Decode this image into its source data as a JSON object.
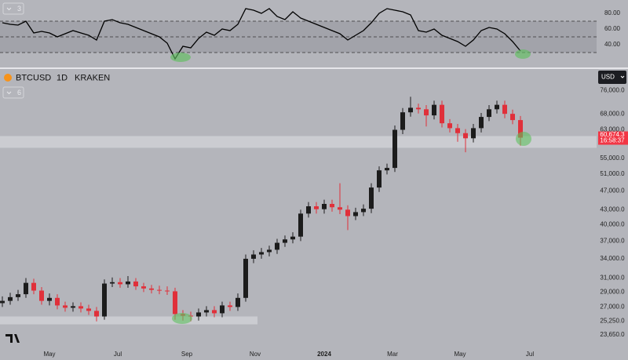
{
  "chart_data": {
    "type": "candlestick",
    "symbol": "BTCUSD",
    "interval": "1D",
    "exchange": "KRAKEN",
    "currency": "USD",
    "indicator_count_top": "3",
    "indicator_count_main": "6",
    "log_scale": true,
    "up_color": "#1c1c1c",
    "down_color": "#e0303a",
    "x": [
      0,
      1,
      2,
      3,
      4,
      5,
      6,
      7,
      8,
      9,
      10,
      11,
      12,
      13,
      14,
      15,
      16,
      17,
      18,
      19,
      20,
      21,
      22,
      23,
      24,
      25,
      26,
      27,
      28,
      29,
      30,
      31,
      32,
      33,
      34,
      35,
      36,
      37,
      38,
      39,
      40,
      41,
      42,
      43,
      44,
      45,
      46,
      47,
      48,
      49,
      50,
      51,
      52,
      53,
      54,
      55,
      56,
      57,
      58,
      59,
      60,
      61,
      62,
      63,
      64,
      65,
      66
    ],
    "open": [
      27500,
      27800,
      28300,
      28700,
      30300,
      29200,
      27800,
      28200,
      27200,
      26900,
      27100,
      26800,
      26500,
      25800,
      30200,
      30400,
      30100,
      30500,
      29800,
      29500,
      29300,
      29200,
      29100,
      26100,
      25900,
      25800,
      26300,
      26600,
      26200,
      27200,
      27000,
      28200,
      34000,
      34700,
      35100,
      35500,
      36700,
      37300,
      37800,
      42200,
      43700,
      43100,
      44200,
      43500,
      43000,
      41700,
      42500,
      43200,
      47800,
      51900,
      52500,
      63000,
      68500,
      70000,
      69500,
      67500,
      71000,
      65000,
      63500,
      62000,
      60500,
      63500,
      67000,
      69500,
      71000,
      68000,
      66000
    ],
    "high": [
      28400,
      28900,
      29300,
      31000,
      30900,
      29700,
      28800,
      28700,
      27700,
      27600,
      27600,
      27300,
      27000,
      30800,
      31100,
      31000,
      31300,
      31000,
      30300,
      30000,
      29900,
      29800,
      29600,
      26600,
      26400,
      26800,
      27100,
      27100,
      27700,
      27700,
      28800,
      34700,
      35400,
      35800,
      36200,
      37400,
      38000,
      38600,
      43000,
      44600,
      44600,
      45100,
      45100,
      48800,
      43900,
      43400,
      44100,
      48800,
      52900,
      53600,
      64300,
      69900,
      73800,
      71400,
      70900,
      72400,
      72400,
      66300,
      64800,
      63200,
      64800,
      68300,
      70900,
      72400,
      72400,
      69400,
      67300
    ],
    "low": [
      27000,
      27300,
      27800,
      28200,
      28700,
      27300,
      27200,
      26700,
      26400,
      26400,
      26300,
      26000,
      25200,
      25400,
      29700,
      29600,
      29600,
      29300,
      29000,
      28800,
      28700,
      28600,
      25400,
      25300,
      25200,
      25300,
      25800,
      25700,
      25700,
      26500,
      26500,
      27700,
      33300,
      34000,
      34400,
      34800,
      36000,
      36600,
      37000,
      41400,
      42200,
      42200,
      42600,
      42100,
      39000,
      40900,
      41700,
      42300,
      46800,
      50900,
      51500,
      61700,
      67100,
      68100,
      64000,
      66200,
      63700,
      62200,
      59500,
      56600,
      59300,
      62200,
      65700,
      68100,
      66600,
      64700,
      58400
    ],
    "close": [
      27800,
      28300,
      28700,
      30300,
      29200,
      27800,
      28200,
      27200,
      26900,
      27100,
      26800,
      26500,
      25800,
      30200,
      30400,
      30100,
      30500,
      29800,
      29500,
      29300,
      29200,
      29100,
      26100,
      25900,
      25800,
      26300,
      26600,
      26200,
      27200,
      27000,
      28200,
      34000,
      34700,
      35100,
      35500,
      36700,
      37300,
      37800,
      42200,
      43700,
      43100,
      44200,
      43500,
      43000,
      41700,
      42500,
      43200,
      47800,
      51900,
      52500,
      63000,
      68500,
      70000,
      69500,
      67500,
      71000,
      65000,
      63500,
      62000,
      60500,
      63500,
      67000,
      69500,
      71000,
      68000,
      66000,
      60674.3
    ],
    "last_price_label": "60,674.3",
    "countdown": "16:58:37",
    "last_price_color": "#f23645",
    "xlim": [
      -0.3,
      75.7
    ],
    "xticks": [
      {
        "value": 6,
        "label": "May"
      },
      {
        "value": 14.7,
        "label": "Jul"
      },
      {
        "value": 23.5,
        "label": "Sep"
      },
      {
        "value": 32.2,
        "label": "Nov"
      },
      {
        "value": 41,
        "label": "2024"
      },
      {
        "value": 49.7,
        "label": "Mar"
      },
      {
        "value": 58.3,
        "label": "May"
      },
      {
        "value": 67.2,
        "label": "Jul"
      }
    ],
    "ylim": [
      22500,
      83000
    ],
    "yticks": [
      {
        "value": 76000,
        "label": "76,000.0"
      },
      {
        "value": 68000,
        "label": "68,000.0"
      },
      {
        "value": 63000,
        "label": "63,000.0"
      },
      {
        "value": 55000,
        "label": "55,000.0"
      },
      {
        "value": 51000,
        "label": "51,000.0"
      },
      {
        "value": 47000,
        "label": "47,000.0"
      },
      {
        "value": 43000,
        "label": "43,000.0"
      },
      {
        "value": 40000,
        "label": "40,000.0"
      },
      {
        "value": 37000,
        "label": "37,000.0"
      },
      {
        "value": 34000,
        "label": "34,000.0"
      },
      {
        "value": 31000,
        "label": "31,000.0"
      },
      {
        "value": 29000,
        "label": "29,000.0"
      },
      {
        "value": 27000,
        "label": "27,000.0"
      },
      {
        "value": 25250,
        "label": "25,250.0"
      },
      {
        "value": 23650,
        "label": "23,650.0"
      }
    ],
    "zones": [
      {
        "low": 57800,
        "high": 61150,
        "x_end": 75.7
      },
      {
        "low": 24850,
        "high": 25800,
        "x_end": 32.5
      }
    ],
    "zone_color": "#cfd0d5",
    "rsi": {
      "color": "#000000",
      "values": [
        68,
        66,
        65,
        70,
        55,
        57,
        55,
        50,
        54,
        58,
        55,
        52,
        46,
        70,
        72,
        68,
        66,
        62,
        58,
        54,
        50,
        42,
        22,
        38,
        36,
        48,
        56,
        52,
        60,
        58,
        66,
        86,
        84,
        80,
        86,
        76,
        72,
        82,
        74,
        70,
        66,
        62,
        58,
        54,
        46,
        52,
        58,
        68,
        80,
        86,
        84,
        82,
        78,
        58,
        56,
        60,
        52,
        48,
        44,
        38,
        46,
        58,
        62,
        60,
        54,
        44,
        32
      ],
      "ylim": [
        12,
        97
      ],
      "yticks": [
        {
          "value": 80,
          "label": "80.00"
        },
        {
          "value": 60,
          "label": "60.00"
        },
        {
          "value": 40,
          "label": "40.00"
        }
      ],
      "levels": [
        70,
        50,
        30
      ]
    }
  }
}
